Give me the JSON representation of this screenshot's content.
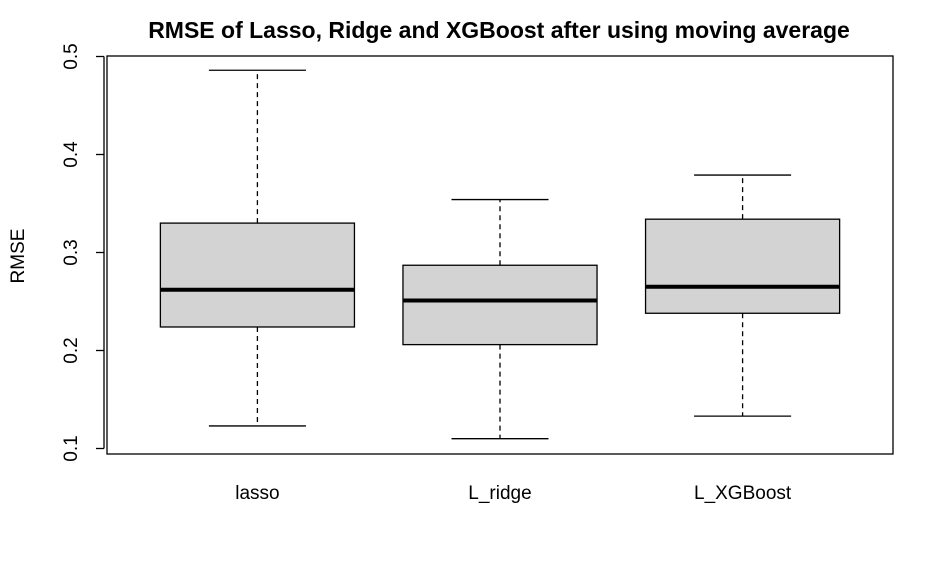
{
  "chart_data": {
    "type": "boxplot",
    "title": "RMSE of Lasso, Ridge and XGBoost after using moving average",
    "xlabel": "",
    "ylabel": "RMSE",
    "ylim": [
      0.1,
      0.5
    ],
    "yticks": [
      "0.1",
      "0.2",
      "0.3",
      "0.4",
      "0.5"
    ],
    "categories": [
      "lasso",
      "L_ridge",
      "L_XGBoost"
    ],
    "boxes": [
      {
        "category": "lasso",
        "min": 0.123,
        "q1": 0.224,
        "median": 0.262,
        "q3": 0.33,
        "max": 0.486
      },
      {
        "category": "L_ridge",
        "min": 0.11,
        "q1": 0.206,
        "median": 0.251,
        "q3": 0.287,
        "max": 0.354
      },
      {
        "category": "L_XGBoost",
        "min": 0.133,
        "q1": 0.238,
        "median": 0.265,
        "q3": 0.334,
        "max": 0.379
      }
    ],
    "box_fill": "#d3d3d3",
    "line_color": "#000000",
    "grid": false
  }
}
